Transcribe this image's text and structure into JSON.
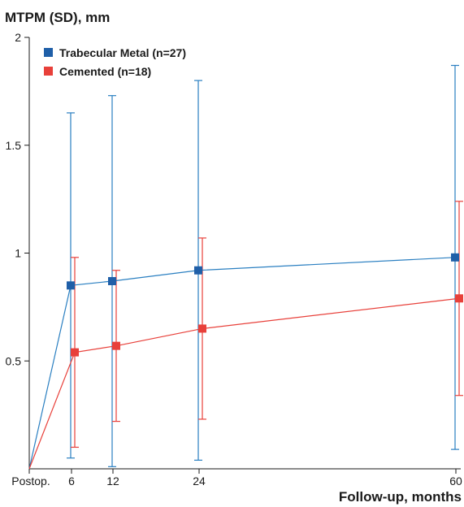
{
  "chart_data": {
    "type": "line",
    "ylabel": "MTPM (SD), mm",
    "xlabel": "Follow-up, months",
    "x": [
      0,
      6,
      12,
      24,
      60
    ],
    "x_tick_labels": [
      "Postop.",
      "6",
      "12",
      "24",
      "60"
    ],
    "ylim": [
      0,
      2
    ],
    "y_ticks": [
      0.5,
      1,
      1.5,
      2
    ],
    "y_tick_labels": [
      "0.5",
      "1",
      "1.5",
      "2"
    ],
    "grid": false,
    "legend_position": "top-left",
    "series": [
      {
        "name": "Trabecular Metal (n=27)",
        "color": "#1f5fa8",
        "line_color": "#2a7fc1",
        "mean": [
          0,
          0.85,
          0.87,
          0.92,
          0.98
        ],
        "sd_upper": [
          null,
          1.65,
          1.73,
          1.8,
          1.87
        ],
        "sd_lower": [
          null,
          0.05,
          0.01,
          0.04,
          0.09
        ]
      },
      {
        "name": "Cemented (n=18)",
        "color": "#e8403a",
        "line_color": "#e8403a",
        "mean": [
          0,
          0.54,
          0.57,
          0.65,
          0.79
        ],
        "sd_upper": [
          null,
          0.98,
          0.92,
          1.07,
          1.24
        ],
        "sd_lower": [
          null,
          0.1,
          0.22,
          0.23,
          0.34
        ]
      }
    ]
  }
}
